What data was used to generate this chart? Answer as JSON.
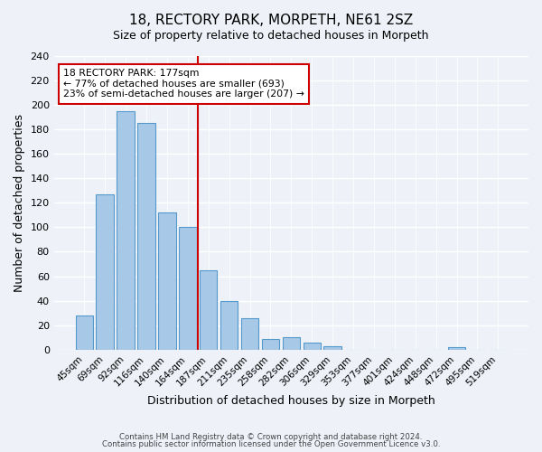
{
  "title": "18, RECTORY PARK, MORPETH, NE61 2SZ",
  "subtitle": "Size of property relative to detached houses in Morpeth",
  "xlabel": "Distribution of detached houses by size in Morpeth",
  "ylabel": "Number of detached properties",
  "bar_labels": [
    "45sqm",
    "69sqm",
    "92sqm",
    "116sqm",
    "140sqm",
    "164sqm",
    "187sqm",
    "211sqm",
    "235sqm",
    "258sqm",
    "282sqm",
    "306sqm",
    "329sqm",
    "353sqm",
    "377sqm",
    "401sqm",
    "424sqm",
    "448sqm",
    "472sqm",
    "495sqm",
    "519sqm"
  ],
  "bar_values": [
    28,
    127,
    195,
    185,
    112,
    100,
    65,
    40,
    26,
    9,
    10,
    6,
    3,
    0,
    0,
    0,
    0,
    0,
    2,
    0,
    0
  ],
  "bar_color": "#a8c8e8",
  "bar_edge_color": "#5599cc",
  "vline_x": 5.5,
  "vline_color": "#cc0000",
  "annotation_text": "18 RECTORY PARK: 177sqm\n← 77% of detached houses are smaller (693)\n23% of semi-detached houses are larger (207) →",
  "annotation_box_edgecolor": "#cc0000",
  "annotation_box_facecolor": "#ffffff",
  "ylim": [
    0,
    240
  ],
  "yticks": [
    0,
    20,
    40,
    60,
    80,
    100,
    120,
    140,
    160,
    180,
    200,
    220,
    240
  ],
  "footer_line1": "Contains HM Land Registry data © Crown copyright and database right 2024.",
  "footer_line2": "Contains public sector information licensed under the Open Government Licence v3.0.",
  "bg_color": "#eef2f8",
  "plot_bg_color": "#eef2f8"
}
